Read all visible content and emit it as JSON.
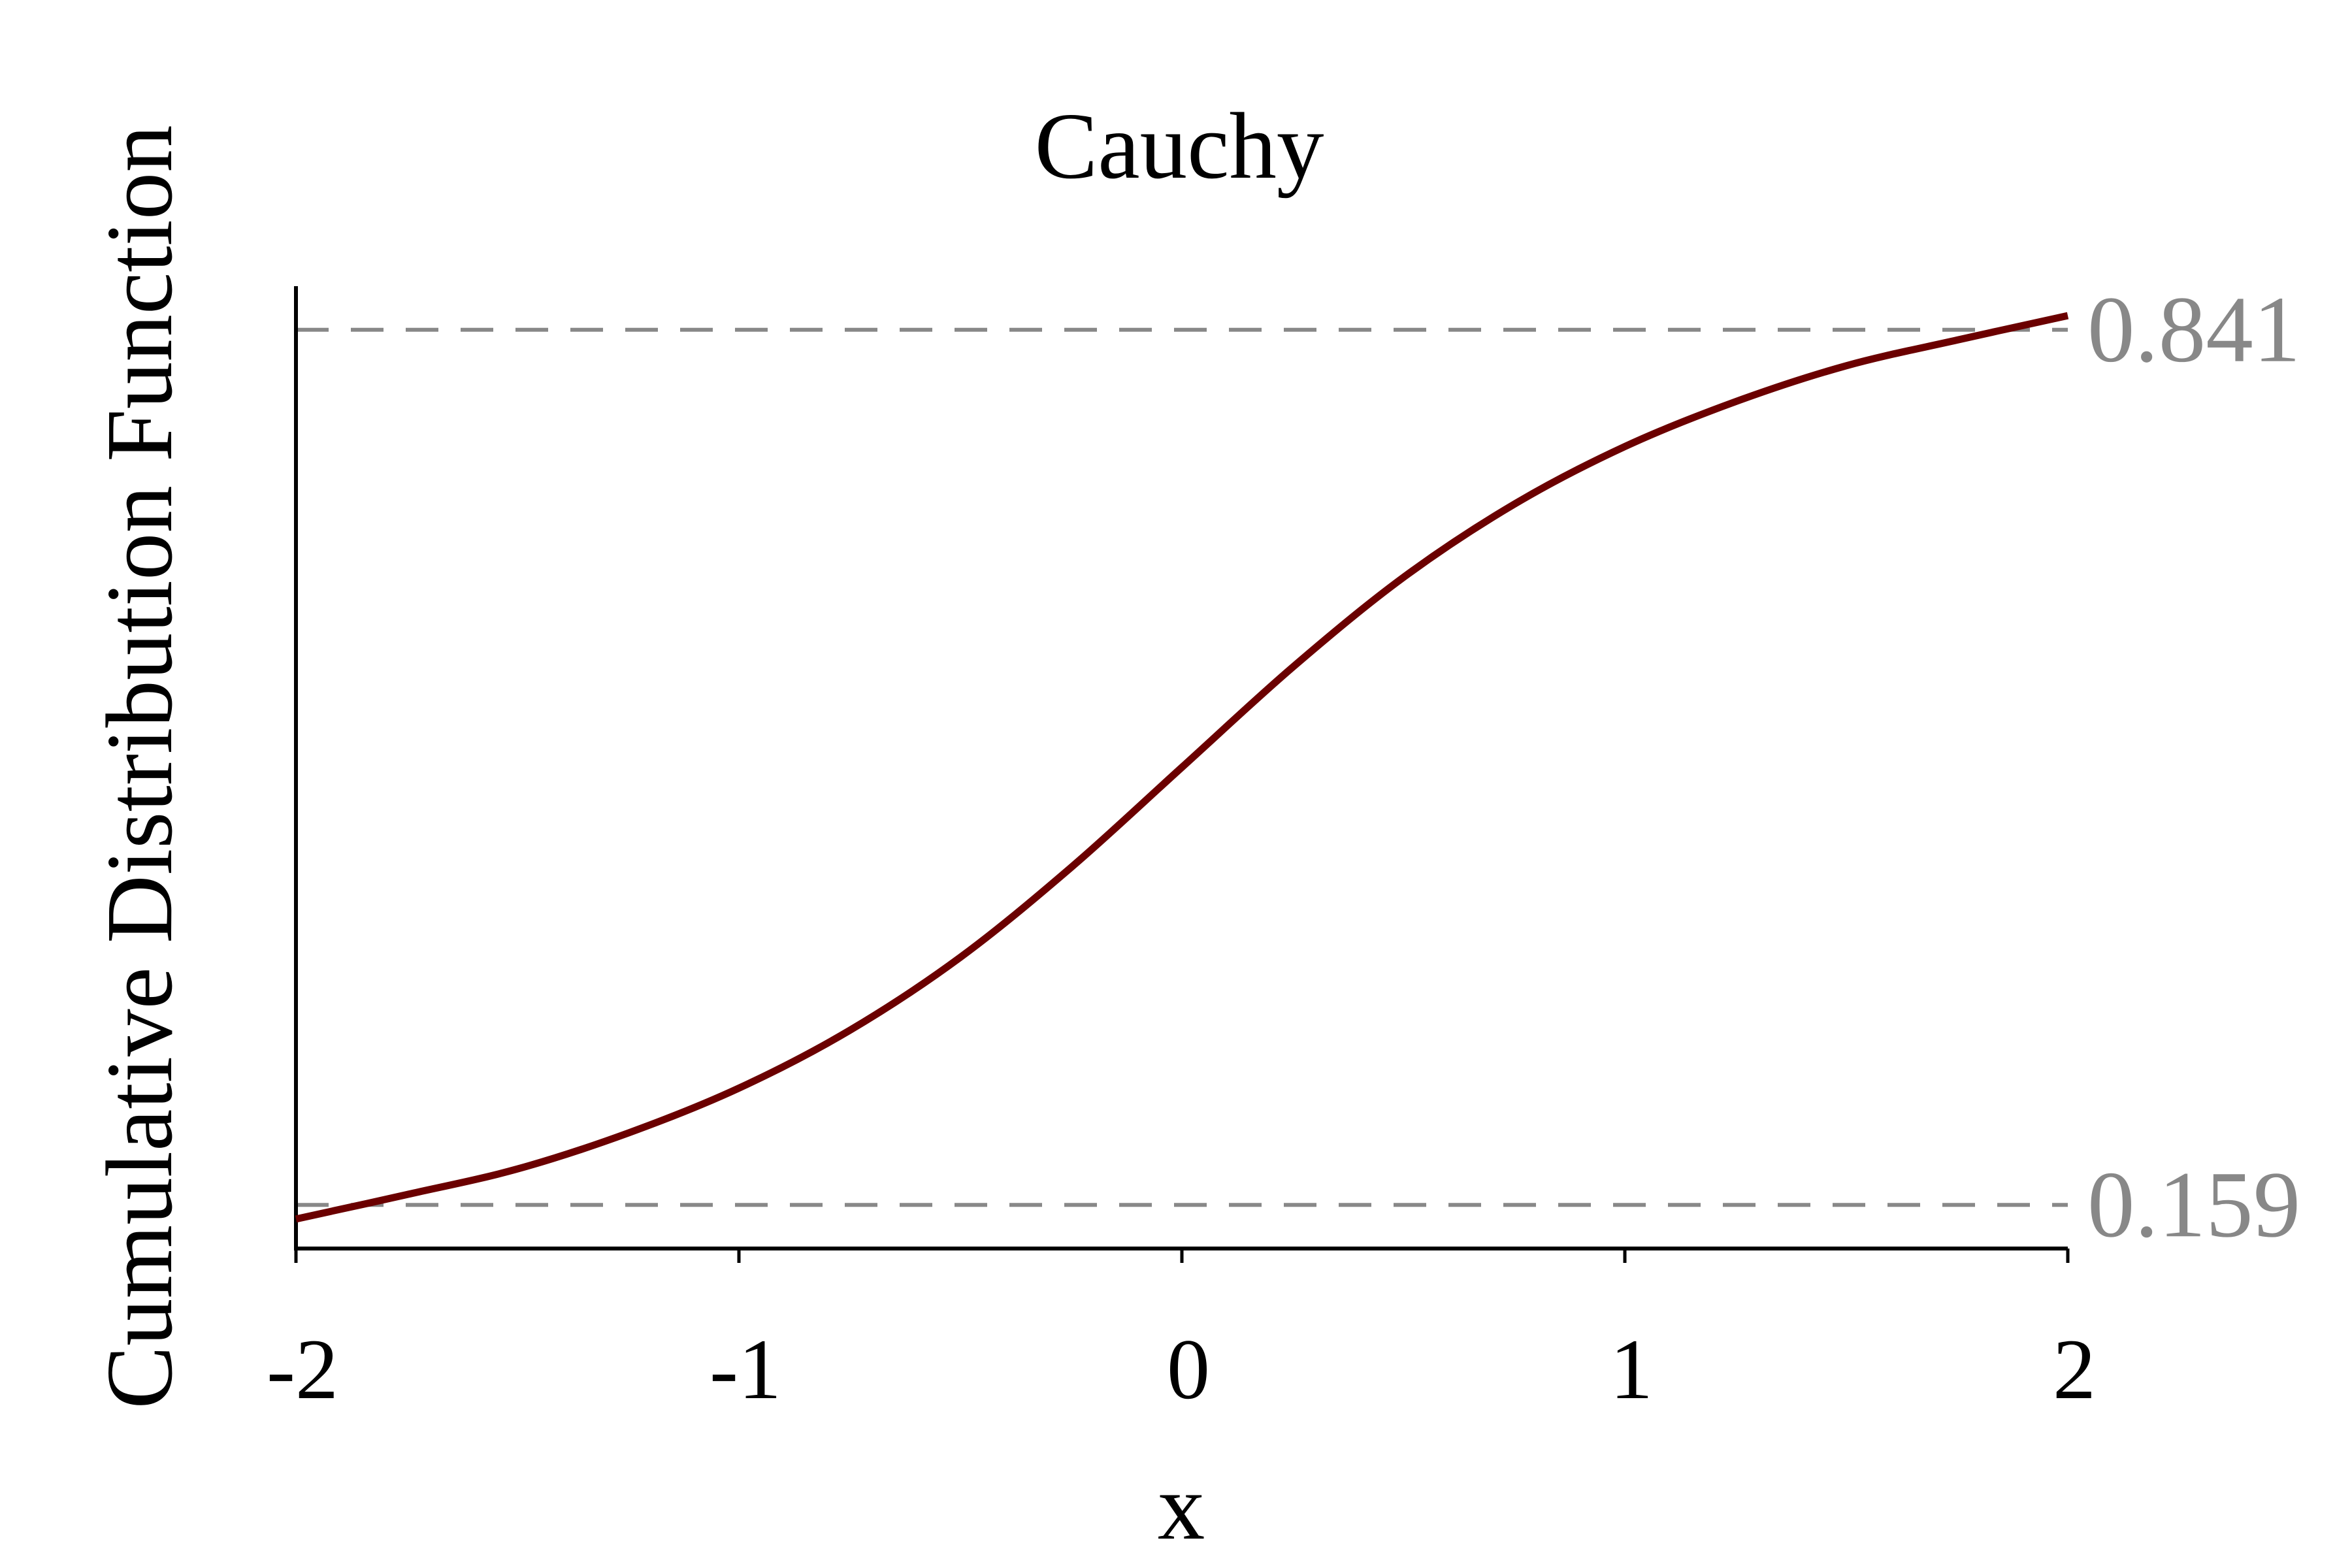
{
  "chart_data": {
    "type": "line",
    "title": "Cauchy",
    "xlabel": "x",
    "ylabel": "Cumulative Distribution Function",
    "xlim": [
      -2,
      2
    ],
    "ylim": [
      0.125,
      0.875
    ],
    "grid": false,
    "x_ticks": [
      -2,
      -1,
      0,
      1,
      2
    ],
    "x_tick_labels": [
      "-2",
      "-1",
      "0",
      "1",
      "2"
    ],
    "series": [
      {
        "color": "#6b0000",
        "x": [
          -2,
          -1.75,
          -1.5,
          -1.25,
          -1,
          -0.75,
          -0.5,
          -0.25,
          0,
          0.25,
          0.5,
          0.75,
          1,
          1.25,
          1.5,
          1.75,
          2
        ],
        "y": [
          0.148,
          0.167,
          0.187,
          0.215,
          0.25,
          0.295,
          0.352,
          0.422,
          0.5,
          0.578,
          0.648,
          0.705,
          0.75,
          0.785,
          0.813,
          0.833,
          0.852
        ]
      }
    ],
    "reference_lines": [
      {
        "y": 0.841,
        "label": "0.841",
        "color": "#888888",
        "style": "dashed"
      },
      {
        "y": 0.159,
        "label": "0.159",
        "color": "#888888",
        "style": "dashed"
      }
    ]
  }
}
